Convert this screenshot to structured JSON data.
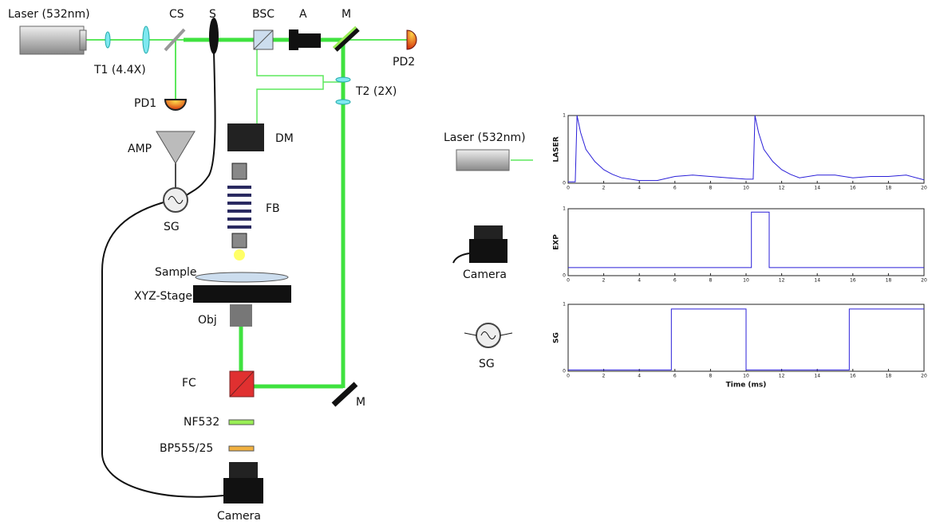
{
  "diagram": {
    "labels": {
      "laser": "Laser (532nm)",
      "t1": "T1 (4.4X)",
      "cs": "CS",
      "s": "S",
      "bsc": "BSC",
      "a": "A",
      "m_top": "M",
      "pd2": "PD2",
      "t2": "T2 (2X)",
      "pd1": "PD1",
      "amp": "AMP",
      "dm": "DM",
      "fb": "FB",
      "sg": "SG",
      "sample": "Sample",
      "stage": "XYZ-Stage",
      "obj": "Obj",
      "fc": "FC",
      "m_bottom": "M",
      "nf": "NF532",
      "bp": "BP555/25",
      "camera": "Camera"
    },
    "inset_labels": {
      "laser": "Laser (532nm)",
      "camera": "Camera",
      "sg": "SG"
    }
  },
  "chart_data": [
    {
      "type": "line",
      "ylabel": "LASER",
      "color": "#2a1fd8",
      "x": [
        0,
        0.4,
        0.5,
        0.7,
        1,
        1.5,
        2,
        2.5,
        3,
        4,
        5,
        6,
        7,
        8,
        9,
        10,
        10.4,
        10.5,
        10.7,
        11,
        11.5,
        12,
        12.5,
        13,
        14,
        15,
        16,
        17,
        18,
        19,
        20
      ],
      "values": [
        0.02,
        0.02,
        1,
        0.75,
        0.5,
        0.32,
        0.2,
        0.13,
        0.08,
        0.04,
        0.04,
        0.1,
        0.12,
        0.1,
        0.08,
        0.06,
        0.06,
        1,
        0.75,
        0.5,
        0.32,
        0.2,
        0.13,
        0.08,
        0.12,
        0.12,
        0.08,
        0.1,
        0.1,
        0.12,
        0.05
      ],
      "xlim": [
        0,
        20
      ],
      "xticks": [
        0,
        2,
        4,
        6,
        8,
        10,
        12,
        14,
        16,
        18,
        20
      ],
      "ylim": [
        0,
        1
      ],
      "yticks": [
        0,
        1
      ]
    },
    {
      "type": "line",
      "ylabel": "EXP",
      "color": "#2a1fd8",
      "x": [
        0,
        10.3,
        10.3,
        11.3,
        11.3,
        20
      ],
      "values": [
        0.12,
        0.12,
        0.95,
        0.95,
        0.12,
        0.12
      ],
      "xlim": [
        0,
        20
      ],
      "xticks": [
        0,
        2,
        4,
        6,
        8,
        10,
        12,
        14,
        16,
        18,
        20
      ],
      "ylim": [
        0,
        1
      ],
      "yticks": [
        0,
        1
      ]
    },
    {
      "type": "line",
      "ylabel": "SG",
      "xlabel": "Time (ms)",
      "color": "#2a1fd8",
      "x": [
        0,
        5.8,
        5.8,
        10,
        10,
        15.8,
        15.8,
        20
      ],
      "values": [
        0.02,
        0.02,
        0.93,
        0.93,
        0.02,
        0.02,
        0.93,
        0.93
      ],
      "xlim": [
        0,
        20
      ],
      "xticks": [
        0,
        2,
        4,
        6,
        8,
        10,
        12,
        14,
        16,
        18,
        20
      ],
      "ylim": [
        0,
        1
      ],
      "yticks": [
        0,
        1
      ]
    }
  ]
}
